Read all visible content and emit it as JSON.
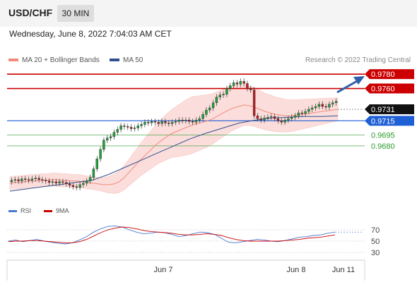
{
  "header": {
    "symbol": "USD/CHF",
    "timeframe": "30 MIN"
  },
  "datetime": "Wednesday, June 8, 2022 7:04:03 AM CET",
  "legend": {
    "ma20_bb": "MA 20 + Bollinger Bands",
    "ma50": "MA 50",
    "credit": "Research © 2022 Trading Central"
  },
  "rsi_legend": {
    "rsi": "RSI",
    "ma9": "9MA"
  },
  "colors": {
    "up": "#22a33a",
    "down": "#b92323",
    "ma20": "#f28a7a",
    "bb_fill": "#fbd9d6",
    "ma50": "#2f4f8f",
    "resistance": "#cc0000",
    "pivot": "#1f5fd6",
    "support": "#2e9a2e",
    "rsi": "#4a78d0",
    "ma9": "#cc0000"
  },
  "chart_data": [
    {
      "type": "candlestick",
      "x_labels": [
        "Jun 7",
        "Jun 8",
        "Jun 11"
      ],
      "ylim": [
        0.962,
        0.979
      ],
      "candle_closes": [
        0.9632,
        0.9633,
        0.9631,
        0.9634,
        0.9633,
        0.9632,
        0.9634,
        0.9635,
        0.9633,
        0.9632,
        0.9631,
        0.9629,
        0.963,
        0.9628,
        0.963,
        0.9629,
        0.9627,
        0.9625,
        0.9623,
        0.9622,
        0.9626,
        0.9628,
        0.9631,
        0.9636,
        0.9648,
        0.9662,
        0.9675,
        0.9688,
        0.9691,
        0.9693,
        0.9699,
        0.9703,
        0.9708,
        0.9707,
        0.9706,
        0.9704,
        0.9705,
        0.9708,
        0.971,
        0.9713,
        0.9712,
        0.9714,
        0.9713,
        0.9711,
        0.9714,
        0.9712,
        0.9711,
        0.9713,
        0.9714,
        0.9716,
        0.9715,
        0.9716,
        0.9714,
        0.9713,
        0.9716,
        0.9718,
        0.9724,
        0.973,
        0.9733,
        0.974,
        0.9748,
        0.9751,
        0.9752,
        0.976,
        0.9764,
        0.9768,
        0.9766,
        0.977,
        0.9767,
        0.976,
        0.9758,
        0.9722,
        0.9718,
        0.9716,
        0.9719,
        0.972,
        0.9721,
        0.9718,
        0.9715,
        0.9713,
        0.9716,
        0.9718,
        0.972,
        0.9722,
        0.9726,
        0.9725,
        0.9728,
        0.9731,
        0.9733,
        0.9735,
        0.9738,
        0.9735,
        0.9734,
        0.9738,
        0.974,
        0.9742
      ],
      "series": [
        {
          "name": "MA 20 + Bollinger Bands",
          "values": [
            0.9628,
            0.9629,
            0.9629,
            0.963,
            0.9631,
            0.9631,
            0.9632,
            0.9632,
            0.9633,
            0.9633,
            0.9632,
            0.9632,
            0.9631,
            0.9631,
            0.963,
            0.9629,
            0.9628,
            0.9627,
            0.9626,
            0.9626,
            0.9627,
            0.963,
            0.9636,
            0.9644,
            0.9652,
            0.966,
            0.9667,
            0.9674,
            0.9681,
            0.9687,
            0.9692,
            0.9697,
            0.97,
            0.9703,
            0.9706,
            0.9709,
            0.9711,
            0.9713,
            0.9715,
            0.9718,
            0.9722,
            0.9726,
            0.973,
            0.9733,
            0.9735,
            0.9737,
            0.9736,
            0.9734,
            0.9731,
            0.9728,
            0.9726,
            0.9724,
            0.9723,
            0.9722,
            0.9722,
            0.9723,
            0.9724,
            0.9725,
            0.9726,
            0.9727,
            0.9728,
            0.9729,
            0.973,
            0.9731
          ]
        },
        {
          "name": "MA 50",
          "values": [
            0.9617,
            0.962,
            0.9623,
            0.9626,
            0.9629,
            0.9632,
            0.964,
            0.965,
            0.966,
            0.967,
            0.968,
            0.969,
            0.9698,
            0.9705,
            0.9712,
            0.9716,
            0.9719,
            0.972,
            0.9721,
            0.9721,
            0.9722
          ]
        }
      ],
      "levels": [
        0.978,
        0.976,
        0.9731,
        0.9715,
        0.9695,
        0.968
      ],
      "level_labels": [
        "0.9780",
        "0.9760",
        "0.9731",
        "0.9715",
        "0.9695",
        "0.9680"
      ]
    },
    {
      "type": "line",
      "ylim": [
        20,
        80
      ],
      "y_ticks": [
        70,
        50,
        30
      ],
      "series": [
        {
          "name": "RSI",
          "values": [
            50,
            52,
            49,
            51,
            53,
            50,
            48,
            46,
            45,
            47,
            52,
            58,
            66,
            72,
            76,
            77,
            75,
            70,
            66,
            63,
            64,
            66,
            65,
            62,
            58,
            60,
            63,
            66,
            65,
            62,
            55,
            48,
            47,
            49,
            51,
            53,
            52,
            50,
            49,
            51,
            54,
            57,
            58,
            60,
            61,
            64,
            66
          ]
        },
        {
          "name": "9MA",
          "values": [
            49,
            50,
            50,
            51,
            51,
            50,
            49,
            48,
            47,
            47,
            49,
            53,
            59,
            65,
            70,
            73,
            75,
            74,
            72,
            69,
            67,
            66,
            65,
            64,
            62,
            61,
            61,
            62,
            63,
            62,
            60,
            56,
            53,
            51,
            50,
            50,
            50,
            50,
            50,
            51,
            52,
            53,
            55,
            56,
            57,
            59,
            61
          ]
        }
      ]
    }
  ]
}
